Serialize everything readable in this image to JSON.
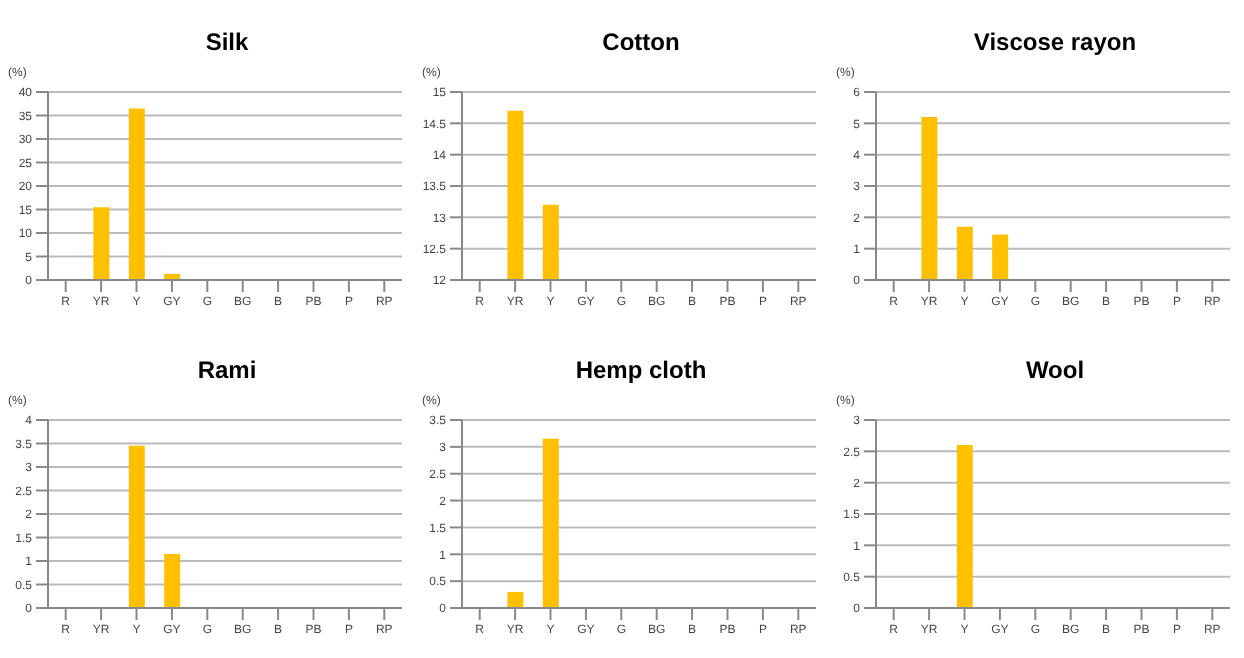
{
  "chart_data": [
    {
      "type": "bar",
      "title": "Silk",
      "ylabel": "(%)",
      "categories": [
        "R",
        "YR",
        "Y",
        "GY",
        "G",
        "BG",
        "B",
        "PB",
        "P",
        "RP"
      ],
      "values": [
        0,
        15.5,
        36.5,
        1.3,
        0,
        0,
        0,
        0,
        0,
        0
      ],
      "color": "#ffc000",
      "ylim": [
        0,
        40
      ],
      "yticks": [
        0,
        5,
        10,
        15,
        20,
        25,
        30,
        35,
        40
      ],
      "grid": "y"
    },
    {
      "type": "bar",
      "title": "Cotton",
      "ylabel": "(%)",
      "categories": [
        "R",
        "YR",
        "Y",
        "GY",
        "G",
        "BG",
        "B",
        "PB",
        "P",
        "RP"
      ],
      "values": [
        null,
        14.7,
        13.2,
        null,
        null,
        null,
        null,
        null,
        null,
        null
      ],
      "color": "#ffc000",
      "ylim": [
        12,
        15
      ],
      "yticks": [
        12,
        12.5,
        13,
        13.5,
        14,
        14.5,
        15
      ],
      "grid": "y"
    },
    {
      "type": "bar",
      "title": "Viscose rayon",
      "ylabel": "(%)",
      "categories": [
        "R",
        "YR",
        "Y",
        "GY",
        "G",
        "BG",
        "B",
        "PB",
        "P",
        "RP"
      ],
      "values": [
        0,
        5.2,
        1.7,
        1.45,
        0,
        0,
        0,
        0,
        0,
        0
      ],
      "color": "#ffc000",
      "ylim": [
        0,
        6
      ],
      "yticks": [
        0,
        1,
        2,
        3,
        4,
        5,
        6
      ],
      "grid": "y"
    },
    {
      "type": "bar",
      "title": "Rami",
      "ylabel": "(%)",
      "categories": [
        "R",
        "YR",
        "Y",
        "GY",
        "G",
        "BG",
        "B",
        "PB",
        "P",
        "RP"
      ],
      "values": [
        0,
        0,
        3.45,
        1.15,
        0,
        0,
        0,
        0,
        0,
        0
      ],
      "color": "#ffc000",
      "ylim": [
        0,
        4
      ],
      "yticks": [
        0,
        0.5,
        1,
        1.5,
        2,
        2.5,
        3,
        3.5,
        4
      ],
      "grid": "y"
    },
    {
      "type": "bar",
      "title": "Hemp cloth",
      "ylabel": "(%)",
      "categories": [
        "R",
        "YR",
        "Y",
        "GY",
        "G",
        "BG",
        "B",
        "PB",
        "P",
        "RP"
      ],
      "values": [
        0,
        0.3,
        3.15,
        0,
        0,
        0,
        0,
        0,
        0,
        0
      ],
      "color": "#ffc000",
      "ylim": [
        0,
        3.5
      ],
      "yticks": [
        0,
        0.5,
        1,
        1.5,
        2,
        2.5,
        3,
        3.5
      ],
      "grid": "y"
    },
    {
      "type": "bar",
      "title": "Wool",
      "ylabel": "(%)",
      "categories": [
        "R",
        "YR",
        "Y",
        "GY",
        "G",
        "BG",
        "B",
        "PB",
        "P",
        "RP"
      ],
      "values": [
        0,
        0,
        2.6,
        0,
        0,
        0,
        0,
        0,
        0,
        0
      ],
      "color": "#ffc000",
      "ylim": [
        0,
        3
      ],
      "yticks": [
        0,
        0.5,
        1,
        1.5,
        2,
        2.5,
        3
      ],
      "grid": "y"
    }
  ]
}
